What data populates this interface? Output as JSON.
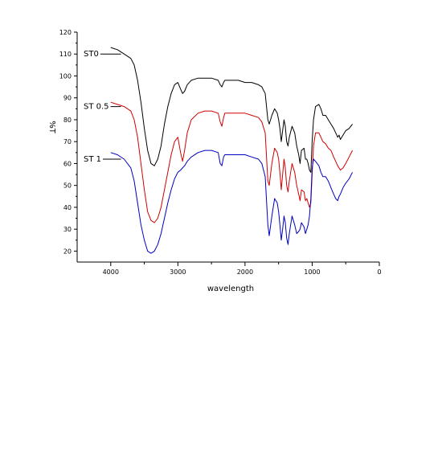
{
  "chart_data": {
    "type": "line",
    "title": "",
    "xlabel": "wavelength",
    "ylabel": "%T",
    "xlim": [
      4500,
      0
    ],
    "ylim": [
      15,
      120
    ],
    "x_ticks": [
      4000,
      3000,
      2000,
      1000,
      0
    ],
    "x_tick_labels": [
      "4000",
      "3000",
      "2000",
      "1000",
      "0"
    ],
    "y_ticks": [
      20,
      30,
      40,
      50,
      60,
      70,
      80,
      90,
      100,
      110,
      120
    ],
    "y_tick_labels": [
      "20",
      "30",
      "40",
      "50",
      "60",
      "70",
      "80",
      "90",
      "100",
      "110",
      "120"
    ],
    "grid": false,
    "series": [
      {
        "name": "ST0",
        "color": "#000000",
        "x": [
          4000,
          3900,
          3800,
          3700,
          3650,
          3600,
          3550,
          3500,
          3450,
          3400,
          3350,
          3300,
          3250,
          3200,
          3150,
          3100,
          3050,
          3000,
          2960,
          2930,
          2900,
          2860,
          2800,
          2700,
          2600,
          2500,
          2400,
          2370,
          2345,
          2320,
          2300,
          2200,
          2100,
          2000,
          1900,
          1800,
          1750,
          1700,
          1660,
          1640,
          1600,
          1560,
          1520,
          1500,
          1480,
          1460,
          1440,
          1420,
          1400,
          1380,
          1360,
          1340,
          1300,
          1260,
          1230,
          1200,
          1180,
          1160,
          1120,
          1100,
          1080,
          1060,
          1040,
          1020,
          1000,
          980,
          950,
          900,
          870,
          840,
          800,
          760,
          720,
          680,
          650,
          620,
          600,
          580,
          540,
          500,
          450,
          400
        ],
        "y": [
          113,
          112,
          110,
          108,
          105,
          98,
          88,
          76,
          66,
          60,
          59,
          62,
          68,
          78,
          86,
          92,
          96,
          97,
          94,
          92,
          93,
          96,
          98,
          99,
          99,
          99,
          98,
          96,
          95,
          97,
          98,
          98,
          98,
          97,
          97,
          96,
          95,
          92,
          80,
          78,
          82,
          85,
          83,
          80,
          76,
          70,
          75,
          80,
          77,
          70,
          68,
          72,
          77,
          74,
          68,
          64,
          60,
          66,
          67,
          62,
          62,
          60,
          57,
          56,
          70,
          80,
          86,
          87,
          85,
          82,
          82,
          80,
          78,
          76,
          74,
          72,
          73,
          71,
          73,
          75,
          76,
          78
        ]
      },
      {
        "name": "ST 0.5",
        "color": "#d00000",
        "x": [
          4000,
          3900,
          3800,
          3700,
          3650,
          3600,
          3550,
          3500,
          3450,
          3400,
          3350,
          3300,
          3250,
          3200,
          3150,
          3100,
          3050,
          3000,
          2960,
          2930,
          2900,
          2860,
          2800,
          2700,
          2600,
          2500,
          2400,
          2370,
          2345,
          2320,
          2300,
          2200,
          2100,
          2000,
          1900,
          1800,
          1750,
          1700,
          1660,
          1640,
          1600,
          1560,
          1520,
          1500,
          1480,
          1460,
          1440,
          1420,
          1400,
          1380,
          1360,
          1340,
          1300,
          1260,
          1230,
          1200,
          1180,
          1160,
          1120,
          1100,
          1080,
          1060,
          1040,
          1020,
          1000,
          980,
          950,
          900,
          870,
          840,
          800,
          760,
          720,
          680,
          650,
          620,
          600,
          580,
          540,
          500,
          450,
          400
        ],
        "y": [
          88,
          87,
          86,
          84,
          80,
          72,
          60,
          48,
          38,
          34,
          33,
          35,
          40,
          48,
          56,
          64,
          70,
          72,
          65,
          61,
          66,
          74,
          80,
          83,
          84,
          84,
          83,
          79,
          77,
          81,
          83,
          83,
          83,
          83,
          82,
          81,
          79,
          74,
          52,
          50,
          60,
          67,
          65,
          62,
          56,
          48,
          55,
          62,
          58,
          50,
          47,
          52,
          60,
          56,
          50,
          46,
          43,
          48,
          47,
          43,
          44,
          42,
          40,
          42,
          55,
          68,
          74,
          74,
          72,
          70,
          69,
          67,
          66,
          63,
          61,
          59,
          58,
          57,
          58,
          60,
          63,
          66
        ]
      },
      {
        "name": "ST 1",
        "color": "#0000c0",
        "x": [
          4000,
          3900,
          3800,
          3700,
          3650,
          3600,
          3550,
          3500,
          3450,
          3400,
          3350,
          3300,
          3250,
          3200,
          3150,
          3100,
          3050,
          3000,
          2960,
          2930,
          2900,
          2860,
          2800,
          2700,
          2600,
          2500,
          2400,
          2370,
          2345,
          2320,
          2300,
          2200,
          2100,
          2000,
          1900,
          1800,
          1750,
          1700,
          1660,
          1640,
          1600,
          1560,
          1520,
          1500,
          1480,
          1460,
          1440,
          1420,
          1400,
          1380,
          1360,
          1340,
          1300,
          1260,
          1230,
          1200,
          1180,
          1160,
          1120,
          1100,
          1080,
          1060,
          1040,
          1020,
          1000,
          980,
          950,
          900,
          870,
          840,
          800,
          760,
          720,
          680,
          650,
          620,
          600,
          580,
          540,
          500,
          450,
          400
        ],
        "y": [
          65,
          64,
          62,
          58,
          52,
          42,
          32,
          25,
          20,
          19,
          20,
          23,
          28,
          35,
          42,
          48,
          53,
          56,
          57,
          58,
          59,
          61,
          63,
          65,
          66,
          66,
          65,
          60,
          59,
          63,
          64,
          64,
          64,
          64,
          63,
          62,
          60,
          54,
          32,
          27,
          36,
          44,
          42,
          38,
          32,
          25,
          30,
          36,
          33,
          26,
          23,
          28,
          36,
          32,
          28,
          29,
          30,
          33,
          31,
          28,
          30,
          32,
          36,
          44,
          58,
          62,
          61,
          59,
          56,
          54,
          54,
          52,
          49,
          46,
          44,
          43,
          45,
          46,
          49,
          51,
          53,
          56
        ]
      }
    ]
  }
}
